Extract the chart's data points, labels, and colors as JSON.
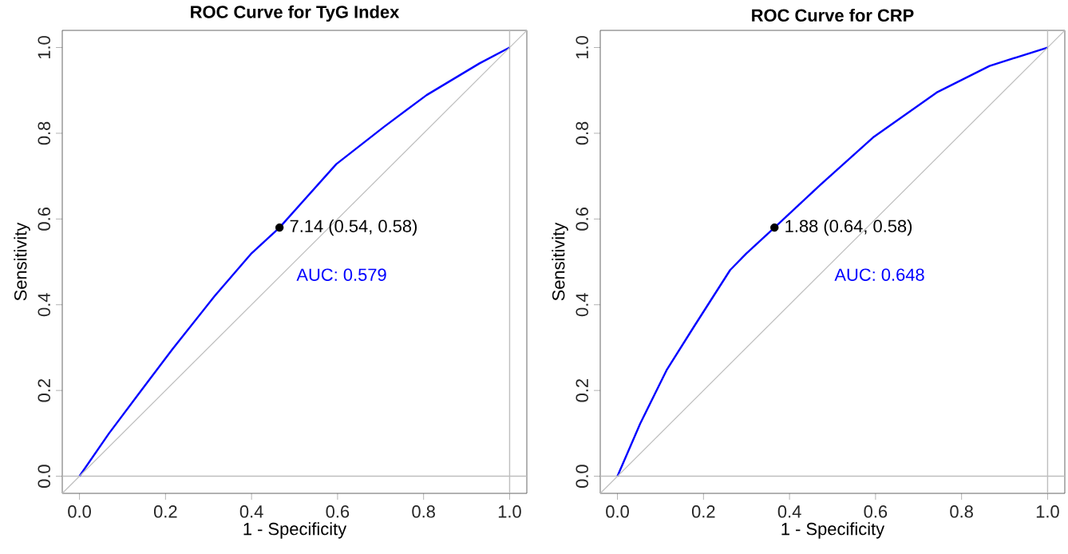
{
  "chart_data": [
    {
      "type": "line",
      "title": "ROC Curve for TyG Index",
      "xlabel": "1 - Specificity",
      "ylabel": "Sensitivity",
      "xlim": [
        -0.04,
        1.04
      ],
      "ylim": [
        -0.04,
        1.04
      ],
      "xticks": [
        {
          "value": 0,
          "label": "0.0"
        },
        {
          "value": 0.2,
          "label": "0.2"
        },
        {
          "value": 0.4,
          "label": "0.4"
        },
        {
          "value": 0.6,
          "label": "0.6"
        },
        {
          "value": 0.8,
          "label": "0.8"
        },
        {
          "value": 1,
          "label": "1.0"
        }
      ],
      "yticks": [
        {
          "value": 0,
          "label": "0.0"
        },
        {
          "value": 0.2,
          "label": "0.2"
        },
        {
          "value": 0.4,
          "label": "0.4"
        },
        {
          "value": 0.6,
          "label": "0.6"
        },
        {
          "value": 0.8,
          "label": "0.8"
        },
        {
          "value": 1,
          "label": "1.0"
        }
      ],
      "series": [
        {
          "color": "#0000ff",
          "x": [
            0,
            0.068,
            0.142,
            0.216,
            0.314,
            0.4,
            0.465,
            0.597,
            0.708,
            0.807,
            0.93,
            1
          ],
          "values": [
            0,
            0.099,
            0.198,
            0.296,
            0.42,
            0.52,
            0.58,
            0.728,
            0.815,
            0.889,
            0.963,
            1
          ]
        },
        {
          "type": "line",
          "color": "#bebebe",
          "x": [
            -0.04,
            1.04
          ],
          "values": [
            -0.04,
            1.04
          ]
        },
        {
          "type": "scatter",
          "color": "#000000",
          "x": [
            0.465
          ],
          "values": [
            0.58
          ]
        }
      ],
      "ref_lines": [
        {
          "axis": "x",
          "value": 1,
          "color": "#bebebe"
        },
        {
          "axis": "y",
          "value": 0,
          "color": "#bebebe"
        }
      ],
      "annotations": [
        {
          "text": "7.14 (0.54, 0.58)",
          "x": 0.465,
          "y": 0.58
        },
        "AUC: 0.579"
      ]
    },
    {
      "type": "line",
      "title": "ROC Curve for CRP",
      "xlabel": "1 - Specificity",
      "ylabel": "Sensitivity",
      "xlim": [
        -0.04,
        1.04
      ],
      "ylim": [
        -0.04,
        1.04
      ],
      "xticks": [
        {
          "value": 0,
          "label": "0.0"
        },
        {
          "value": 0.2,
          "label": "0.2"
        },
        {
          "value": 0.4,
          "label": "0.4"
        },
        {
          "value": 0.6,
          "label": "0.6"
        },
        {
          "value": 0.8,
          "label": "0.8"
        },
        {
          "value": 1,
          "label": "1.0"
        }
      ],
      "yticks": [
        {
          "value": 0,
          "label": "0.0"
        },
        {
          "value": 0.2,
          "label": "0.2"
        },
        {
          "value": 0.4,
          "label": "0.4"
        },
        {
          "value": 0.6,
          "label": "0.6"
        },
        {
          "value": 0.8,
          "label": "0.8"
        },
        {
          "value": 1,
          "label": "1.0"
        }
      ],
      "series": [
        {
          "color": "#0000ff",
          "x": [
            0,
            0.053,
            0.114,
            0.176,
            0.262,
            0.299,
            0.365,
            0.471,
            0.594,
            0.742,
            0.865,
            1
          ],
          "values": [
            0,
            0.123,
            0.247,
            0.346,
            0.481,
            0.519,
            0.58,
            0.679,
            0.79,
            0.895,
            0.957,
            1
          ]
        },
        {
          "type": "line",
          "color": "#bebebe",
          "x": [
            -0.04,
            1.04
          ],
          "values": [
            -0.04,
            1.04
          ]
        },
        {
          "type": "scatter",
          "color": "#000000",
          "x": [
            0.365
          ],
          "values": [
            0.58
          ]
        }
      ],
      "ref_lines": [
        {
          "axis": "x",
          "value": 1,
          "color": "#bebebe"
        },
        {
          "axis": "y",
          "value": 0,
          "color": "#bebebe"
        }
      ],
      "annotations": [
        {
          "text": "1.88 (0.64, 0.58)",
          "x": 0.365,
          "y": 0.58
        },
        "AUC: 0.648"
      ]
    }
  ]
}
